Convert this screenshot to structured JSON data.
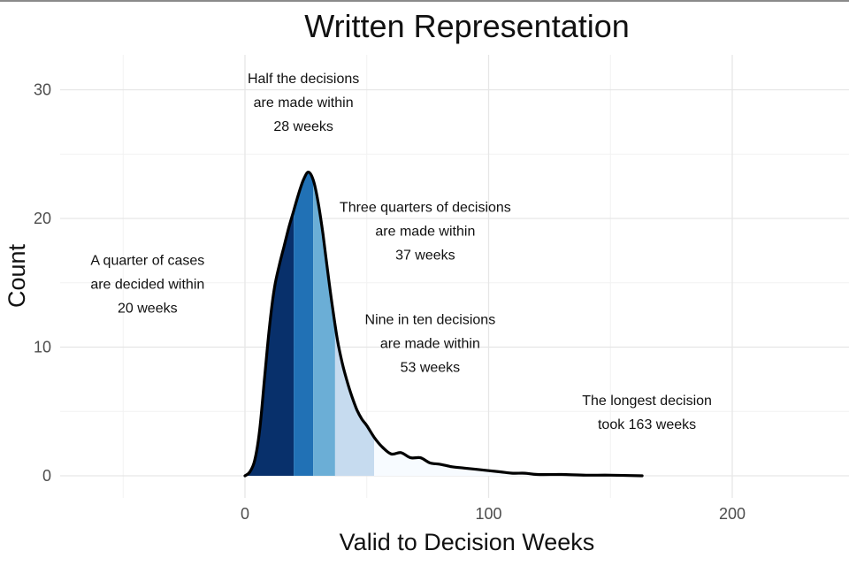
{
  "chart_data": {
    "type": "area",
    "title": "Written Representation",
    "xlabel": "Valid to Decision Weeks",
    "ylabel": "Count",
    "xlim": [
      -50,
      250
    ],
    "ylim": [
      0,
      30
    ],
    "x_ticks": [
      0,
      100,
      200
    ],
    "y_ticks": [
      0,
      10,
      20,
      30
    ],
    "grid": true,
    "legend": "none",
    "density_curve": {
      "x": [
        0,
        2,
        4,
        6,
        8,
        10,
        12,
        14,
        16,
        18,
        20,
        22,
        24,
        26,
        28,
        30,
        32,
        34,
        36,
        38,
        40,
        42,
        44,
        46,
        48,
        50,
        53,
        56,
        60,
        64,
        68,
        72,
        76,
        80,
        85,
        90,
        95,
        100,
        105,
        110,
        115,
        120,
        130,
        140,
        150,
        163
      ],
      "y": [
        0,
        0.3,
        1.2,
        3.5,
        7.5,
        11.5,
        14.5,
        16.3,
        17.8,
        19.3,
        20.6,
        21.9,
        23.0,
        23.6,
        23.0,
        21.3,
        18.8,
        15.8,
        13.0,
        10.5,
        8.7,
        7.3,
        6.1,
        5.1,
        4.4,
        3.9,
        3.0,
        2.3,
        1.7,
        1.8,
        1.4,
        1.4,
        1.0,
        0.9,
        0.7,
        0.6,
        0.5,
        0.4,
        0.3,
        0.2,
        0.2,
        0.1,
        0.1,
        0.05,
        0.05,
        0
      ]
    },
    "bands": [
      {
        "from": 0,
        "to": 20,
        "color": "#08306b"
      },
      {
        "from": 20,
        "to": 28,
        "color": "#2171b5"
      },
      {
        "from": 28,
        "to": 37,
        "color": "#6baed6"
      },
      {
        "from": 37,
        "to": 53,
        "color": "#c6dbef"
      },
      {
        "from": 53,
        "to": 163,
        "color": "#f7fbff"
      }
    ],
    "annotations": [
      {
        "lines": [
          "A quarter of cases",
          "are decided within",
          "20 weeks"
        ],
        "x": -40,
        "y": 16.4
      },
      {
        "lines": [
          "Half the decisions",
          "are made within",
          "28 weeks"
        ],
        "x": 24,
        "y": 30.5
      },
      {
        "lines": [
          "Three quarters of decisions",
          "are made within",
          "37 weeks"
        ],
        "x": 74,
        "y": 20.5
      },
      {
        "lines": [
          "Nine in ten decisions",
          "are made within",
          "53 weeks"
        ],
        "x": 76,
        "y": 11.8
      },
      {
        "lines": [
          "The longest decision",
          "took 163 weeks"
        ],
        "x": 165,
        "y": 5.5
      }
    ]
  }
}
